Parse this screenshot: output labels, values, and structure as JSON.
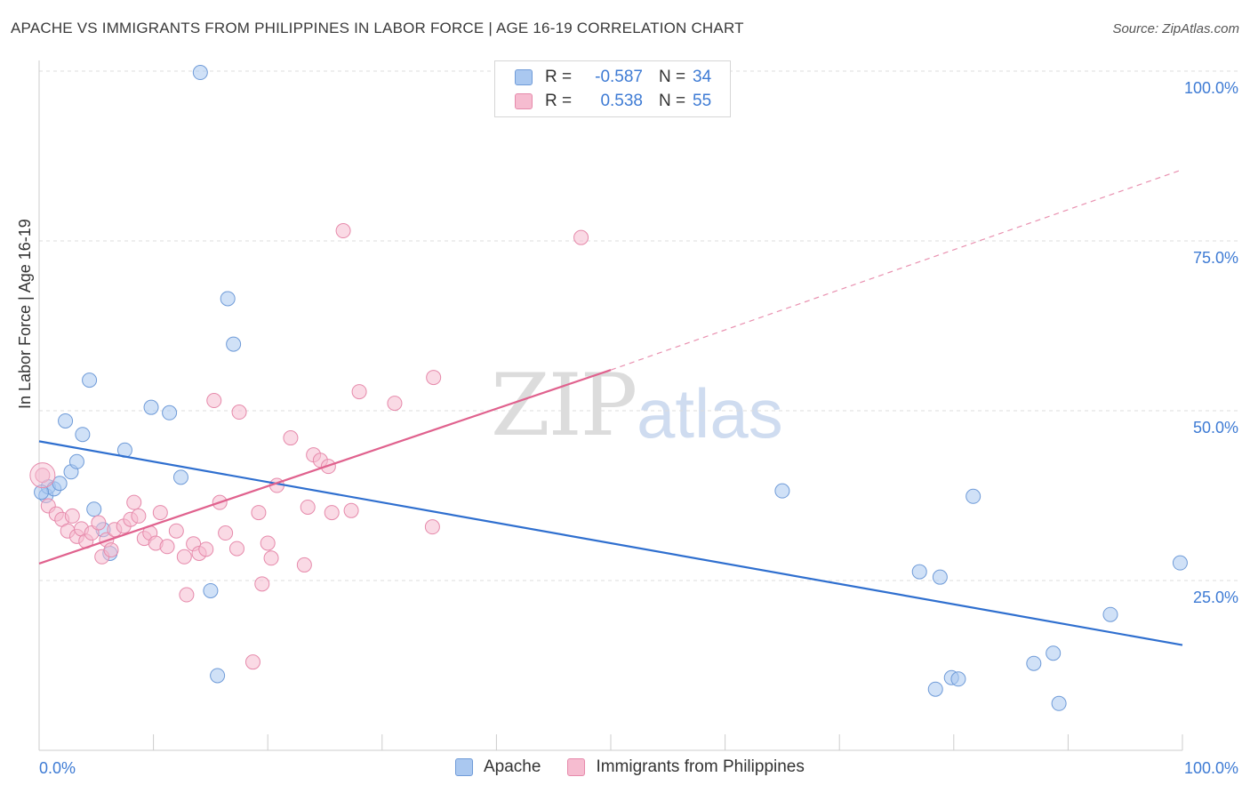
{
  "title": "APACHE VS IMMIGRANTS FROM PHILIPPINES IN LABOR FORCE | AGE 16-19 CORRELATION CHART",
  "source": "Source: ZipAtlas.com",
  "watermark": {
    "zip": "ZIP",
    "atlas": "atlas"
  },
  "colors": {
    "apache_fill": "#aac8f0",
    "apache_stroke": "#6f9bd8",
    "apache_line": "#2f6fcf",
    "phil_fill": "#f6bcd0",
    "phil_stroke": "#e68aab",
    "phil_line": "#e0628e",
    "axis_text": "#3e7bd4",
    "grid": "#dddddd"
  },
  "legend_top": [
    {
      "r_label": "R =",
      "r_value": "-0.587",
      "n_label": "N =",
      "n_value": "34"
    },
    {
      "r_label": "R =",
      "r_value": "0.538",
      "n_label": "N =",
      "n_value": "55"
    }
  ],
  "legend_bottom": [
    "Apache",
    "Immigrants from Philippines"
  ],
  "chart_data": {
    "type": "scatter",
    "title": "APACHE VS IMMIGRANTS FROM PHILIPPINES IN LABOR FORCE | AGE 16-19 CORRELATION CHART",
    "xlabel": "",
    "ylabel": "In Labor Force | Age 16-19",
    "xlim": [
      0,
      100
    ],
    "ylim": [
      0,
      102
    ],
    "x_tick_labels": [
      "0.0%",
      "100.0%"
    ],
    "y_ticks": [
      25,
      50,
      75,
      100
    ],
    "y_tick_labels": [
      "25.0%",
      "50.0%",
      "75.0%",
      "100.0%"
    ],
    "grid": true,
    "legend_position": "bottom",
    "series": [
      {
        "name": "Apache",
        "points": [
          [
            0.6,
            37.5
          ],
          [
            0.8,
            38.8
          ],
          [
            1.3,
            38.5
          ],
          [
            1.8,
            39.3
          ],
          [
            2.3,
            48.5
          ],
          [
            2.8,
            41.0
          ],
          [
            3.3,
            42.5
          ],
          [
            3.8,
            46.5
          ],
          [
            4.4,
            54.5
          ],
          [
            4.8,
            35.5
          ],
          [
            5.6,
            32.5
          ],
          [
            6.2,
            29.0
          ],
          [
            7.5,
            44.2
          ],
          [
            9.8,
            50.5
          ],
          [
            11.4,
            49.7
          ],
          [
            12.4,
            40.2
          ],
          [
            14.1,
            99.8
          ],
          [
            15.0,
            23.5
          ],
          [
            15.6,
            11.0
          ],
          [
            16.5,
            66.5
          ],
          [
            17.0,
            59.8
          ],
          [
            65.0,
            38.2
          ],
          [
            77.0,
            26.3
          ],
          [
            78.4,
            9.0
          ],
          [
            78.8,
            25.5
          ],
          [
            79.8,
            10.7
          ],
          [
            80.4,
            10.5
          ],
          [
            81.7,
            37.4
          ],
          [
            87.0,
            12.8
          ],
          [
            88.7,
            14.3
          ],
          [
            89.2,
            6.9
          ],
          [
            93.7,
            20.0
          ],
          [
            99.8,
            27.6
          ],
          [
            0.2,
            38.0
          ]
        ]
      },
      {
        "name": "Immigrants from Philippines",
        "points": [
          [
            0.3,
            40.5
          ],
          [
            0.8,
            36.0
          ],
          [
            1.5,
            34.8
          ],
          [
            2.0,
            34.0
          ],
          [
            2.5,
            32.3
          ],
          [
            2.9,
            34.5
          ],
          [
            3.3,
            31.5
          ],
          [
            3.7,
            32.6
          ],
          [
            4.1,
            30.8
          ],
          [
            4.6,
            32.0
          ],
          [
            5.2,
            33.5
          ],
          [
            5.5,
            28.5
          ],
          [
            5.9,
            31.0
          ],
          [
            6.3,
            29.5
          ],
          [
            6.6,
            32.5
          ],
          [
            7.4,
            33.0
          ],
          [
            8.0,
            34.0
          ],
          [
            8.3,
            36.5
          ],
          [
            8.7,
            34.5
          ],
          [
            9.2,
            31.2
          ],
          [
            9.7,
            32.0
          ],
          [
            10.2,
            30.5
          ],
          [
            10.6,
            35.0
          ],
          [
            11.2,
            30.0
          ],
          [
            12.0,
            32.3
          ],
          [
            12.7,
            28.5
          ],
          [
            12.9,
            22.9
          ],
          [
            13.5,
            30.4
          ],
          [
            14.0,
            29.0
          ],
          [
            14.6,
            29.6
          ],
          [
            15.3,
            51.5
          ],
          [
            15.8,
            36.5
          ],
          [
            16.3,
            32.0
          ],
          [
            17.3,
            29.7
          ],
          [
            17.5,
            49.8
          ],
          [
            18.7,
            13.0
          ],
          [
            19.2,
            35.0
          ],
          [
            19.5,
            24.5
          ],
          [
            20.0,
            30.5
          ],
          [
            20.3,
            28.3
          ],
          [
            20.8,
            39.0
          ],
          [
            22.0,
            46.0
          ],
          [
            23.2,
            27.3
          ],
          [
            23.5,
            35.8
          ],
          [
            24.0,
            43.5
          ],
          [
            24.6,
            42.7
          ],
          [
            25.3,
            41.8
          ],
          [
            25.6,
            35.0
          ],
          [
            26.6,
            76.5
          ],
          [
            27.3,
            35.3
          ],
          [
            28.0,
            52.8
          ],
          [
            31.1,
            51.1
          ],
          [
            34.4,
            32.9
          ],
          [
            34.5,
            54.9
          ],
          [
            47.4,
            75.5
          ]
        ]
      }
    ],
    "trend_lines": [
      {
        "series": "Apache",
        "x": [
          0,
          100
        ],
        "y": [
          45.5,
          15.5
        ],
        "style": "solid"
      },
      {
        "series": "Immigrants from Philippines",
        "x": [
          0,
          50
        ],
        "y": [
          27.5,
          56.0
        ],
        "style": "solid"
      },
      {
        "series": "Immigrants from Philippines",
        "x": [
          50,
          100
        ],
        "y": [
          56.0,
          85.5
        ],
        "style": "dashed"
      }
    ]
  }
}
